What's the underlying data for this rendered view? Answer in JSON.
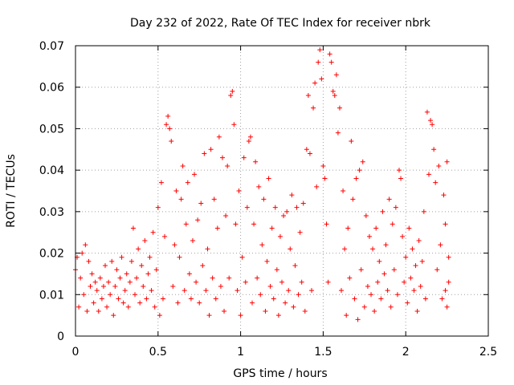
{
  "chart_data": {
    "type": "scatter",
    "title": "Day 232 of 2022, Rate Of TEC Index for receiver nbrk",
    "xlabel": "GPS time / hours",
    "ylabel": "ROTI / TECUs",
    "xlim": [
      0,
      2.5
    ],
    "ylim": [
      0,
      0.07
    ],
    "x_ticks": [
      "0",
      "0.5",
      "1",
      "1.5",
      "2",
      "2.5"
    ],
    "y_ticks": [
      "0",
      "0.01",
      "0.02",
      "0.03",
      "0.04",
      "0.05",
      "0.06",
      "0.07"
    ],
    "x_tick_values": [
      0,
      0.5,
      1,
      1.5,
      2,
      2.5
    ],
    "y_tick_values": [
      0,
      0.01,
      0.02,
      0.03,
      0.04,
      0.05,
      0.06,
      0.07
    ],
    "grid": true,
    "marker": "+",
    "color": "#ff0000",
    "series": [
      {
        "points": [
          [
            0.0,
            0.016
          ],
          [
            0.01,
            0.019
          ],
          [
            0.02,
            0.007
          ],
          [
            0.03,
            0.014
          ],
          [
            0.04,
            0.02
          ],
          [
            0.05,
            0.01
          ],
          [
            0.06,
            0.022
          ],
          [
            0.07,
            0.006
          ],
          [
            0.08,
            0.018
          ],
          [
            0.09,
            0.012
          ],
          [
            0.1,
            0.015
          ],
          [
            0.11,
            0.008
          ],
          [
            0.12,
            0.013
          ],
          [
            0.13,
            0.011
          ],
          [
            0.14,
            0.006
          ],
          [
            0.15,
            0.014
          ],
          [
            0.16,
            0.009
          ],
          [
            0.17,
            0.012
          ],
          [
            0.18,
            0.017
          ],
          [
            0.19,
            0.007
          ],
          [
            0.2,
            0.013
          ],
          [
            0.21,
            0.01
          ],
          [
            0.22,
            0.018
          ],
          [
            0.23,
            0.005
          ],
          [
            0.24,
            0.012
          ],
          [
            0.25,
            0.016
          ],
          [
            0.26,
            0.009
          ],
          [
            0.27,
            0.014
          ],
          [
            0.28,
            0.019
          ],
          [
            0.29,
            0.008
          ],
          [
            0.3,
            0.011
          ],
          [
            0.31,
            0.015
          ],
          [
            0.32,
            0.007
          ],
          [
            0.33,
            0.013
          ],
          [
            0.34,
            0.018
          ],
          [
            0.35,
            0.026
          ],
          [
            0.36,
            0.01
          ],
          [
            0.37,
            0.014
          ],
          [
            0.38,
            0.021
          ],
          [
            0.39,
            0.008
          ],
          [
            0.4,
            0.017
          ],
          [
            0.41,
            0.012
          ],
          [
            0.42,
            0.023
          ],
          [
            0.43,
            0.009
          ],
          [
            0.44,
            0.015
          ],
          [
            0.45,
            0.019
          ],
          [
            0.46,
            0.011
          ],
          [
            0.47,
            0.025
          ],
          [
            0.48,
            0.007
          ],
          [
            0.49,
            0.016
          ],
          [
            0.5,
            0.031
          ],
          [
            0.51,
            0.005
          ],
          [
            0.52,
            0.037
          ],
          [
            0.53,
            0.009
          ],
          [
            0.54,
            0.024
          ],
          [
            0.55,
            0.051
          ],
          [
            0.56,
            0.053
          ],
          [
            0.57,
            0.05
          ],
          [
            0.58,
            0.047
          ],
          [
            0.59,
            0.012
          ],
          [
            0.6,
            0.022
          ],
          [
            0.61,
            0.035
          ],
          [
            0.62,
            0.008
          ],
          [
            0.63,
            0.019
          ],
          [
            0.64,
            0.033
          ],
          [
            0.65,
            0.041
          ],
          [
            0.66,
            0.011
          ],
          [
            0.67,
            0.027
          ],
          [
            0.68,
            0.037
          ],
          [
            0.69,
            0.015
          ],
          [
            0.7,
            0.009
          ],
          [
            0.71,
            0.023
          ],
          [
            0.72,
            0.039
          ],
          [
            0.73,
            0.013
          ],
          [
            0.74,
            0.028
          ],
          [
            0.75,
            0.008
          ],
          [
            0.76,
            0.032
          ],
          [
            0.77,
            0.017
          ],
          [
            0.78,
            0.044
          ],
          [
            0.79,
            0.011
          ],
          [
            0.8,
            0.021
          ],
          [
            0.81,
            0.005
          ],
          [
            0.82,
            0.045
          ],
          [
            0.83,
            0.014
          ],
          [
            0.84,
            0.033
          ],
          [
            0.85,
            0.009
          ],
          [
            0.86,
            0.026
          ],
          [
            0.87,
            0.048
          ],
          [
            0.88,
            0.012
          ],
          [
            0.89,
            0.043
          ],
          [
            0.9,
            0.006
          ],
          [
            0.91,
            0.029
          ],
          [
            0.92,
            0.041
          ],
          [
            0.93,
            0.014
          ],
          [
            0.94,
            0.058
          ],
          [
            0.95,
            0.059
          ],
          [
            0.96,
            0.051
          ],
          [
            0.97,
            0.027
          ],
          [
            0.98,
            0.011
          ],
          [
            0.99,
            0.035
          ],
          [
            1.0,
            0.005
          ],
          [
            1.01,
            0.019
          ],
          [
            1.02,
            0.043
          ],
          [
            1.03,
            0.013
          ],
          [
            1.04,
            0.031
          ],
          [
            1.05,
            0.047
          ],
          [
            1.06,
            0.048
          ],
          [
            1.07,
            0.008
          ],
          [
            1.08,
            0.027
          ],
          [
            1.09,
            0.042
          ],
          [
            1.1,
            0.014
          ],
          [
            1.11,
            0.036
          ],
          [
            1.12,
            0.01
          ],
          [
            1.13,
            0.022
          ],
          [
            1.14,
            0.033
          ],
          [
            1.15,
            0.006
          ],
          [
            1.16,
            0.018
          ],
          [
            1.17,
            0.038
          ],
          [
            1.18,
            0.012
          ],
          [
            1.19,
            0.026
          ],
          [
            1.2,
            0.009
          ],
          [
            1.21,
            0.031
          ],
          [
            1.22,
            0.016
          ],
          [
            1.23,
            0.005
          ],
          [
            1.24,
            0.024
          ],
          [
            1.25,
            0.013
          ],
          [
            1.26,
            0.029
          ],
          [
            1.27,
            0.008
          ],
          [
            1.28,
            0.03
          ],
          [
            1.29,
            0.011
          ],
          [
            1.3,
            0.021
          ],
          [
            1.31,
            0.034
          ],
          [
            1.32,
            0.007
          ],
          [
            1.33,
            0.017
          ],
          [
            1.34,
            0.031
          ],
          [
            1.35,
            0.01
          ],
          [
            1.36,
            0.025
          ],
          [
            1.37,
            0.013
          ],
          [
            1.38,
            0.032
          ],
          [
            1.39,
            0.006
          ],
          [
            1.4,
            0.045
          ],
          [
            1.41,
            0.058
          ],
          [
            1.42,
            0.044
          ],
          [
            1.43,
            0.011
          ],
          [
            1.44,
            0.055
          ],
          [
            1.45,
            0.061
          ],
          [
            1.46,
            0.036
          ],
          [
            1.47,
            0.066
          ],
          [
            1.48,
            0.069
          ],
          [
            1.49,
            0.062
          ],
          [
            1.5,
            0.041
          ],
          [
            1.51,
            0.038
          ],
          [
            1.52,
            0.027
          ],
          [
            1.53,
            0.013
          ],
          [
            1.54,
            0.068
          ],
          [
            1.55,
            0.066
          ],
          [
            1.56,
            0.059
          ],
          [
            1.57,
            0.058
          ],
          [
            1.58,
            0.063
          ],
          [
            1.59,
            0.049
          ],
          [
            1.6,
            0.055
          ],
          [
            1.61,
            0.011
          ],
          [
            1.62,
            0.035
          ],
          [
            1.63,
            0.021
          ],
          [
            1.64,
            0.005
          ],
          [
            1.65,
            0.026
          ],
          [
            1.66,
            0.014
          ],
          [
            1.67,
            0.047
          ],
          [
            1.68,
            0.033
          ],
          [
            1.69,
            0.009
          ],
          [
            1.7,
            0.038
          ],
          [
            1.71,
            0.004
          ],
          [
            1.72,
            0.04
          ],
          [
            1.73,
            0.016
          ],
          [
            1.74,
            0.042
          ],
          [
            1.75,
            0.007
          ],
          [
            1.76,
            0.029
          ],
          [
            1.77,
            0.012
          ],
          [
            1.78,
            0.024
          ],
          [
            1.79,
            0.01
          ],
          [
            1.8,
            0.021
          ],
          [
            1.81,
            0.006
          ],
          [
            1.82,
            0.026
          ],
          [
            1.83,
            0.013
          ],
          [
            1.84,
            0.018
          ],
          [
            1.85,
            0.009
          ],
          [
            1.86,
            0.03
          ],
          [
            1.87,
            0.015
          ],
          [
            1.88,
            0.022
          ],
          [
            1.89,
            0.011
          ],
          [
            1.9,
            0.033
          ],
          [
            1.91,
            0.007
          ],
          [
            1.92,
            0.027
          ],
          [
            1.93,
            0.016
          ],
          [
            1.94,
            0.031
          ],
          [
            1.95,
            0.01
          ],
          [
            1.96,
            0.04
          ],
          [
            1.97,
            0.038
          ],
          [
            1.98,
            0.024
          ],
          [
            1.99,
            0.013
          ],
          [
            2.0,
            0.019
          ],
          [
            2.01,
            0.008
          ],
          [
            2.02,
            0.026
          ],
          [
            2.03,
            0.014
          ],
          [
            2.04,
            0.021
          ],
          [
            2.05,
            0.011
          ],
          [
            2.06,
            0.017
          ],
          [
            2.07,
            0.006
          ],
          [
            2.08,
            0.023
          ],
          [
            2.09,
            0.012
          ],
          [
            2.1,
            0.018
          ],
          [
            2.11,
            0.03
          ],
          [
            2.12,
            0.009
          ],
          [
            2.13,
            0.054
          ],
          [
            2.14,
            0.039
          ],
          [
            2.15,
            0.052
          ],
          [
            2.16,
            0.051
          ],
          [
            2.17,
            0.045
          ],
          [
            2.18,
            0.037
          ],
          [
            2.19,
            0.016
          ],
          [
            2.2,
            0.041
          ],
          [
            2.21,
            0.022
          ],
          [
            2.22,
            0.009
          ],
          [
            2.23,
            0.034
          ],
          [
            2.24,
            0.027
          ],
          [
            2.25,
            0.042
          ],
          [
            2.26,
            0.013
          ],
          [
            2.25,
            0.007
          ],
          [
            2.26,
            0.019
          ],
          [
            2.24,
            0.011
          ]
        ]
      }
    ]
  }
}
